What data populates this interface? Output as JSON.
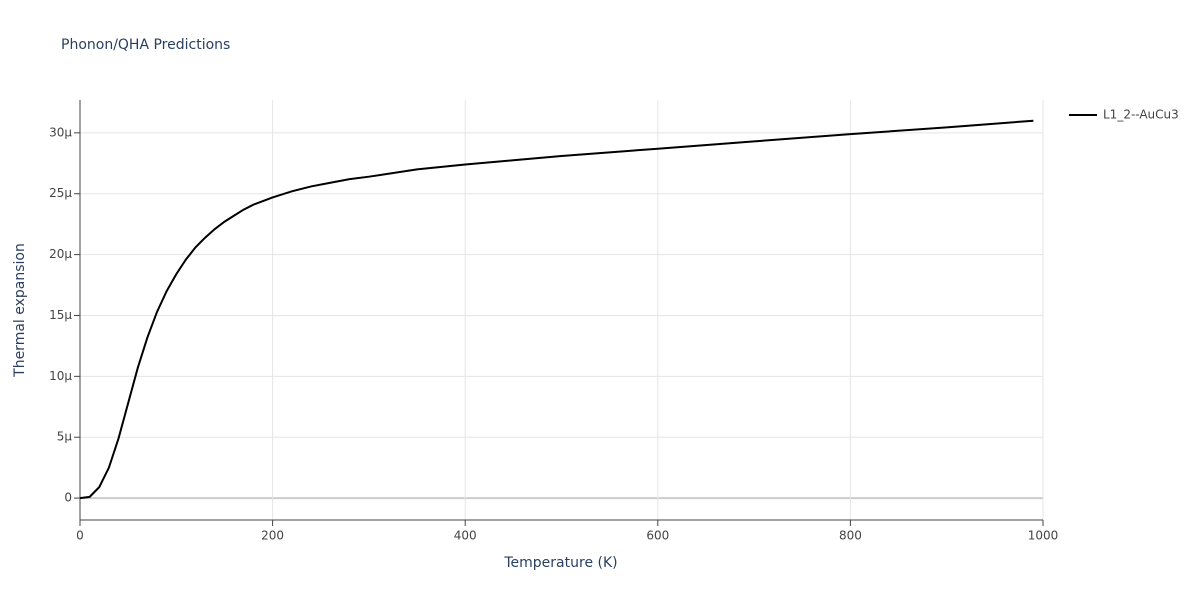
{
  "chart_data": {
    "type": "line",
    "title": "Phonon/QHA Predictions",
    "x_label": "Temperature (K)",
    "y_label": "Thermal expansion",
    "x": [
      0,
      10,
      20,
      30,
      40,
      50,
      60,
      70,
      80,
      90,
      100,
      110,
      120,
      130,
      140,
      150,
      160,
      170,
      180,
      190,
      200,
      220,
      240,
      260,
      280,
      300,
      350,
      400,
      450,
      500,
      600,
      700,
      800,
      900,
      990
    ],
    "series": [
      {
        "name": "L1_2--AuCu3",
        "color": "#000000",
        "values": [
          0,
          1e-07,
          9e-07,
          2.5e-06,
          4.9e-06,
          7.8e-06,
          1.07e-05,
          1.32e-05,
          1.53e-05,
          1.7e-05,
          1.84e-05,
          1.96e-05,
          2.06e-05,
          2.14e-05,
          2.21e-05,
          2.27e-05,
          2.32e-05,
          2.37e-05,
          2.41e-05,
          2.44e-05,
          2.47e-05,
          2.52e-05,
          2.56e-05,
          2.59e-05,
          2.62e-05,
          2.64e-05,
          2.7e-05,
          2.74e-05,
          2.775e-05,
          2.81e-05,
          2.87e-05,
          2.93e-05,
          2.99e-05,
          3.045e-05,
          3.1e-05
        ]
      }
    ],
    "xlim": [
      0,
      1000
    ],
    "xticks": [
      0,
      200,
      400,
      600,
      800,
      1000
    ],
    "ylim": [
      -1.8e-06,
      3.27e-05
    ],
    "yticks": [
      0,
      {
        "value": 5e-06,
        "label": "5μ"
      },
      {
        "value": 1e-05,
        "label": "10μ"
      },
      {
        "value": 1.5e-05,
        "label": "15μ"
      },
      {
        "value": 2e-05,
        "label": "20μ"
      },
      {
        "value": 2.5e-05,
        "label": "25μ"
      },
      {
        "value": 3e-05,
        "label": "30μ"
      }
    ],
    "grid": true,
    "legend": "top-right"
  }
}
